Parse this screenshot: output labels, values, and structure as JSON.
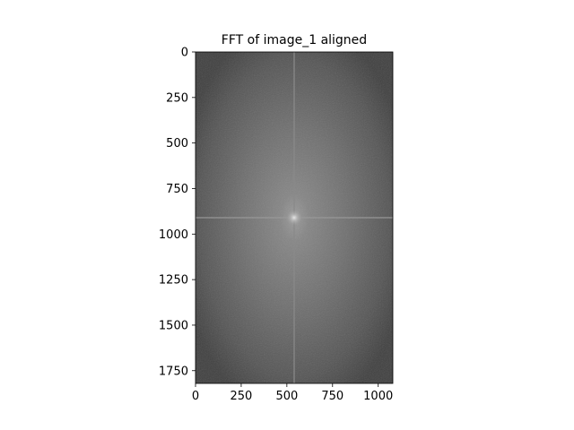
{
  "chart_data": {
    "type": "heatmap",
    "title": "FFT of image_1 aligned",
    "xlabel": "",
    "ylabel": "",
    "colormap": "gray",
    "xlim": [
      0,
      1080
    ],
    "ylim": [
      1820,
      0
    ],
    "x_ticks": [
      0,
      250,
      500,
      750,
      1000
    ],
    "y_ticks": [
      0,
      250,
      500,
      750,
      1000,
      1250,
      1500,
      1750
    ],
    "center": [
      540,
      910
    ],
    "colorbar": false,
    "grid": false
  }
}
